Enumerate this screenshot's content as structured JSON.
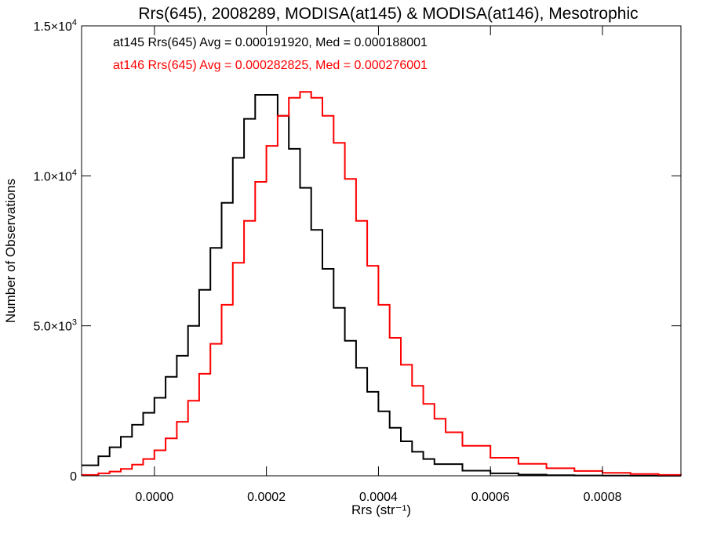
{
  "chart_data": {
    "type": "line",
    "title": "Rrs(645), 2008289, MODISA(at145) & MODISA(at146), Mesotrophic",
    "xlabel": "Rrs (str⁻¹)",
    "ylabel": "Number of Observations",
    "xlim": [
      -0.00013,
      0.00094
    ],
    "ylim": [
      0,
      15000
    ],
    "x_ticks": [
      {
        "value": 0.0,
        "label": "0.0000"
      },
      {
        "value": 0.0002,
        "label": "0.0002"
      },
      {
        "value": 0.0004,
        "label": "0.0004"
      },
      {
        "value": 0.0006,
        "label": "0.0006"
      },
      {
        "value": 0.0008,
        "label": "0.0008"
      }
    ],
    "y_ticks": [
      {
        "value": 0,
        "mantissa": "0",
        "exponent": ""
      },
      {
        "value": 5000,
        "mantissa": "5.0×10",
        "exponent": "3"
      },
      {
        "value": 10000,
        "mantissa": "1.0×10",
        "exponent": "4"
      },
      {
        "value": 15000,
        "mantissa": "1.5×10",
        "exponent": "4"
      }
    ],
    "grid": false,
    "series": [
      {
        "name": "at145",
        "color": "#000000",
        "stat_text": "at145 Rrs(645) Avg = 0.000191920, Med = 0.000188001",
        "x": [
          -0.00013,
          -0.0001,
          -8e-05,
          -6e-05,
          -4e-05,
          -2e-05,
          0.0,
          2e-05,
          4e-05,
          6e-05,
          8e-05,
          0.0001,
          0.00012,
          0.00014,
          0.00016,
          0.00018,
          0.0002,
          0.00022,
          0.00024,
          0.00026,
          0.00028,
          0.0003,
          0.00032,
          0.00034,
          0.00036,
          0.00038,
          0.0004,
          0.00042,
          0.00044,
          0.00046,
          0.00048,
          0.0005,
          0.00055,
          0.0006,
          0.00065,
          0.0007,
          0.00075,
          0.0008,
          0.00085,
          0.0009,
          0.00094
        ],
        "y": [
          350,
          650,
          950,
          1300,
          1700,
          2100,
          2600,
          3300,
          4000,
          5000,
          6200,
          7600,
          9100,
          10600,
          11900,
          12700,
          12700,
          12000,
          10900,
          9600,
          8200,
          6900,
          5600,
          4500,
          3600,
          2800,
          2150,
          1600,
          1150,
          800,
          560,
          390,
          170,
          80,
          40,
          20,
          10,
          5,
          3,
          1,
          0
        ]
      },
      {
        "name": "at146",
        "color": "#ff0000",
        "stat_text": "at146 Rrs(645) Avg = 0.000282825, Med = 0.000276001",
        "x": [
          -0.00013,
          -0.0001,
          -8e-05,
          -6e-05,
          -4e-05,
          -2e-05,
          0.0,
          2e-05,
          4e-05,
          6e-05,
          8e-05,
          0.0001,
          0.00012,
          0.00014,
          0.00016,
          0.00018,
          0.0002,
          0.00022,
          0.00024,
          0.00026,
          0.00028,
          0.0003,
          0.00032,
          0.00034,
          0.00036,
          0.00038,
          0.0004,
          0.00042,
          0.00044,
          0.00046,
          0.00048,
          0.0005,
          0.00052,
          0.00055,
          0.0006,
          0.00065,
          0.0007,
          0.00075,
          0.0008,
          0.00085,
          0.0009,
          0.00094
        ],
        "y": [
          30,
          80,
          140,
          230,
          370,
          560,
          850,
          1250,
          1800,
          2500,
          3400,
          4400,
          5700,
          7100,
          8500,
          9800,
          11000,
          12000,
          12600,
          12800,
          12600,
          12000,
          11100,
          9900,
          8500,
          7000,
          5700,
          4600,
          3700,
          3000,
          2400,
          1900,
          1450,
          1000,
          600,
          400,
          250,
          160,
          100,
          60,
          30,
          15
        ]
      }
    ]
  }
}
